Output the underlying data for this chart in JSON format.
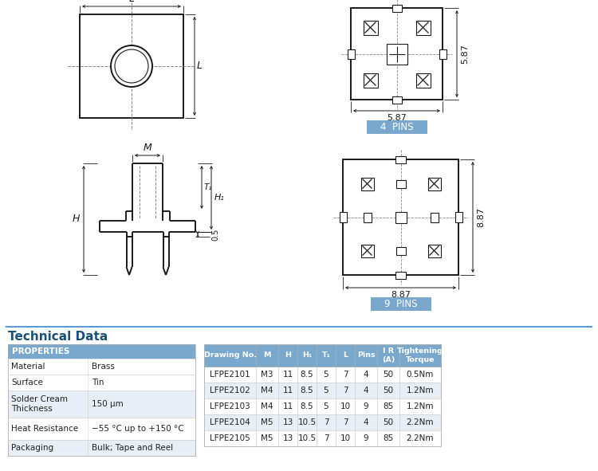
{
  "bg_color": "#ffffff",
  "section_title": "Technical Data",
  "section_title_color": "#1a5276",
  "divider_color": "#5b9bd5",
  "props_header": "PROPERTIES",
  "props_header_bg": "#7aa7cc",
  "props_header_color": "#ffffff",
  "props_rows": [
    [
      "Material",
      "Brass"
    ],
    [
      "Surface",
      "Tin"
    ],
    [
      "Solder Cream\nThickness",
      "150 μm"
    ],
    [
      "Heat Resistance",
      "−55 °C up to +150 °C"
    ],
    [
      "Packaging",
      "Bulk; Tape and Reel"
    ]
  ],
  "props_row_bg": [
    "#ffffff",
    "#ffffff",
    "#e8eef5",
    "#ffffff",
    "#e8eef5"
  ],
  "table_header": [
    "Drawing No.",
    "M",
    "H",
    "H₁",
    "T₁",
    "L",
    "Pins",
    "I R\n(A)",
    "Tightening\nTorque"
  ],
  "table_header_bg": "#7aa7cc",
  "table_header_color": "#ffffff",
  "table_rows": [
    [
      "LFPE2101",
      "M3",
      "11",
      "8.5",
      "5",
      "7",
      "4",
      "50",
      "0.5Nm"
    ],
    [
      "LFPE2102",
      "M4",
      "11",
      "8.5",
      "5",
      "7",
      "4",
      "50",
      "1.2Nm"
    ],
    [
      "LFPE2103",
      "M4",
      "11",
      "8.5",
      "5",
      "10",
      "9",
      "85",
      "1.2Nm"
    ],
    [
      "LFPE2104",
      "M5",
      "13",
      "10.5",
      "7",
      "7",
      "4",
      "50",
      "2.2Nm"
    ],
    [
      "LFPE2105",
      "M5",
      "13",
      "10.5",
      "7",
      "10",
      "9",
      "85",
      "2.2Nm"
    ]
  ],
  "table_row_bg": [
    "#ffffff",
    "#e8eef5",
    "#ffffff",
    "#e8eef5",
    "#ffffff"
  ],
  "pins_label_bg": "#7aa7cc",
  "pins_label_color": "#ffffff",
  "line_color": "#1a1a1a",
  "dashed_color": "#888888",
  "dim_color": "#1a1a1a"
}
